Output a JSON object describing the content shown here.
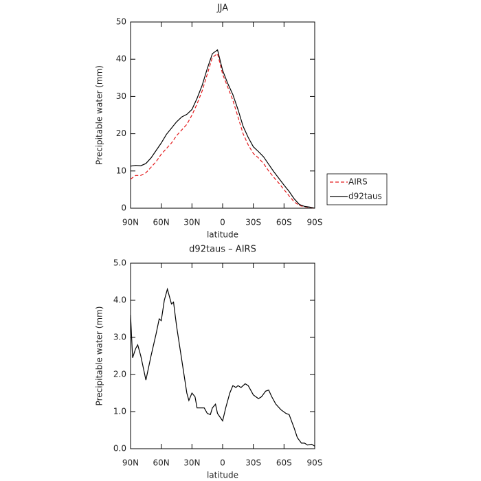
{
  "chart_data": [
    {
      "type": "line",
      "title": "JJA",
      "xlabel": "latitude",
      "ylabel": "Precipitable water (mm)",
      "x": [
        90,
        85,
        80,
        75,
        70,
        65,
        60,
        55,
        50,
        45,
        40,
        35,
        30,
        25,
        20,
        15,
        10,
        5,
        0,
        -5,
        -10,
        -15,
        -20,
        -25,
        -30,
        -35,
        -40,
        -45,
        -50,
        -55,
        -60,
        -65,
        -70,
        -75,
        -80,
        -85,
        -90
      ],
      "series": [
        {
          "name": "AIRS",
          "color": "#e41a1c",
          "dashed": true,
          "values": [
            7.8,
            8.8,
            8.8,
            9.5,
            11,
            12.5,
            14.5,
            16,
            17.5,
            19.5,
            21,
            22.5,
            25,
            28,
            31.5,
            36,
            40.5,
            41.5,
            36,
            32.5,
            29,
            24.5,
            20,
            17,
            14.7,
            13.5,
            12,
            10,
            8.3,
            6.7,
            5,
            3.3,
            1.7,
            0.7,
            0.4,
            0.2,
            0
          ]
        },
        {
          "name": "d92taus",
          "color": "#000000",
          "dashed": false,
          "values": [
            11.3,
            11.5,
            11.4,
            12,
            13.5,
            15.5,
            17.5,
            19.8,
            21.5,
            23.2,
            24.5,
            25.2,
            26.5,
            29.5,
            33,
            37.5,
            41.5,
            42.5,
            37,
            33.5,
            30.5,
            26.5,
            22,
            19,
            16.5,
            15.2,
            13.8,
            11.8,
            9.8,
            8,
            6.2,
            4.5,
            2.5,
            1,
            0.5,
            0.3,
            0
          ]
        }
      ],
      "xlim": [
        90,
        -90
      ],
      "ylim": [
        0,
        50
      ],
      "xticks": [
        {
          "value": 90,
          "label": "90N"
        },
        {
          "value": 60,
          "label": "60N"
        },
        {
          "value": 30,
          "label": "30N"
        },
        0,
        {
          "value": -30,
          "label": "30S"
        },
        {
          "value": -60,
          "label": "60S"
        },
        {
          "value": -90,
          "label": "90S"
        }
      ],
      "yticks": [
        0,
        10,
        20,
        30,
        40,
        50
      ],
      "legend": "right"
    },
    {
      "type": "line",
      "title": "d92taus – AIRS",
      "xlabel": "latitude",
      "ylabel": "Precipitable water (mm)",
      "x": [
        90,
        88,
        85,
        83,
        80,
        75,
        70,
        65,
        62,
        60,
        57,
        54,
        50,
        48,
        45,
        40,
        35,
        33,
        30,
        27,
        25,
        20,
        18,
        15,
        12,
        10,
        7,
        5,
        0,
        -3,
        -7,
        -10,
        -13,
        -15,
        -18,
        -22,
        -25,
        -30,
        -35,
        -38,
        -42,
        -45,
        -48,
        -52,
        -57,
        -62,
        -65,
        -70,
        -73,
        -77,
        -80,
        -83,
        -87,
        -90
      ],
      "values": [
        3.6,
        2.45,
        2.7,
        2.8,
        2.5,
        1.85,
        2.5,
        3.1,
        3.5,
        3.45,
        4.0,
        4.3,
        3.9,
        3.95,
        3.3,
        2.4,
        1.5,
        1.3,
        1.5,
        1.4,
        1.1,
        1.1,
        1.1,
        0.95,
        0.92,
        1.1,
        1.2,
        0.95,
        0.75,
        1.1,
        1.5,
        1.7,
        1.65,
        1.7,
        1.65,
        1.75,
        1.7,
        1.45,
        1.35,
        1.4,
        1.55,
        1.58,
        1.4,
        1.2,
        1.05,
        0.95,
        0.92,
        0.55,
        0.3,
        0.15,
        0.15,
        0.1,
        0.12,
        0.07
      ],
      "color": "#000000",
      "xlim": [
        90,
        -90
      ],
      "ylim": [
        0,
        5
      ],
      "xticks": [
        {
          "value": 90,
          "label": "90N"
        },
        {
          "value": 60,
          "label": "60N"
        },
        {
          "value": 30,
          "label": "30N"
        },
        0,
        {
          "value": -30,
          "label": "30S"
        },
        {
          "value": -60,
          "label": "60S"
        },
        {
          "value": -90,
          "label": "90S"
        }
      ],
      "yticks": [
        {
          "value": 0,
          "label": "0.0"
        },
        {
          "value": 1,
          "label": "1.0"
        },
        {
          "value": 2,
          "label": "2.0"
        },
        {
          "value": 3,
          "label": "3.0"
        },
        {
          "value": 4,
          "label": "4.0"
        },
        {
          "value": 5,
          "label": "5.0"
        }
      ]
    }
  ]
}
